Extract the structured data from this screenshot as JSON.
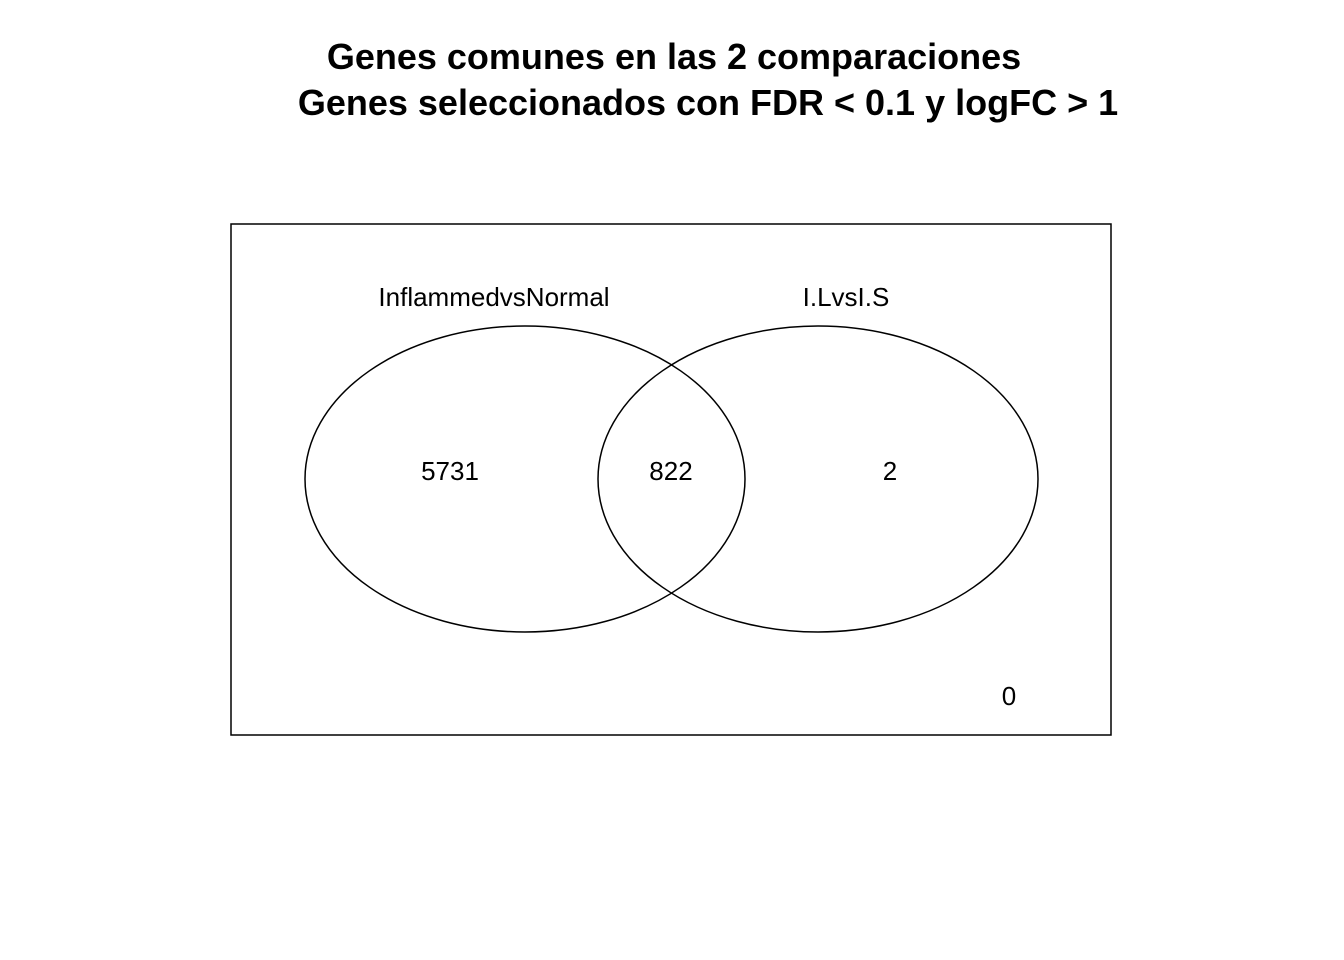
{
  "title": {
    "line1": "Genes comunes en las 2 comparaciones",
    "line2": "Genes seleccionados con FDR < 0.1 y logFC > 1"
  },
  "venn": {
    "sets": [
      {
        "name": "InflammedvsNormal"
      },
      {
        "name": "I.LvsI.S"
      }
    ],
    "counts": {
      "only_set1": "5731",
      "intersection": "822",
      "only_set2": "2",
      "outside": "0"
    },
    "colors": {
      "stroke": "#000000",
      "background": "#ffffff",
      "text": "#000000"
    }
  }
}
